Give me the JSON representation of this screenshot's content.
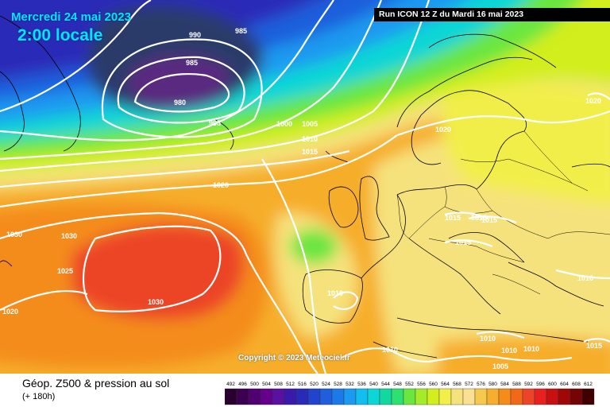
{
  "header": {
    "date": "Mercredi 24 mai 2023",
    "time": "2:00 locale",
    "run": "Run ICON 12 Z du Mardi 16 mai 2023"
  },
  "copyright": "Copyright © 2023 Meteociel.fr",
  "footer": {
    "product": "Géop. Z500 & pression au sol",
    "lead": "(+ 180h)"
  },
  "isobars": [
    {
      "label": "990"
    },
    {
      "label": "985"
    },
    {
      "label": "985"
    },
    {
      "label": "980"
    },
    {
      "label": "995"
    },
    {
      "label": "1000"
    },
    {
      "label": "1005"
    },
    {
      "label": "1010"
    },
    {
      "label": "1015"
    },
    {
      "label": "1020"
    },
    {
      "label": "1020"
    },
    {
      "label": "1020"
    },
    {
      "label": "1030"
    },
    {
      "label": "1030"
    },
    {
      "label": "1025"
    },
    {
      "label": "1030"
    },
    {
      "label": "1020"
    },
    {
      "label": "1015"
    },
    {
      "label": "1015"
    },
    {
      "label": "1015"
    },
    {
      "label": "1015"
    },
    {
      "label": "1010"
    },
    {
      "label": "1010"
    },
    {
      "label": "1010"
    },
    {
      "label": "1010"
    },
    {
      "label": "1010"
    },
    {
      "label": "1005"
    },
    {
      "label": "1010"
    },
    {
      "label": "1015"
    }
  ],
  "scale": {
    "values": [
      "492",
      "496",
      "500",
      "504",
      "508",
      "512",
      "516",
      "520",
      "524",
      "528",
      "532",
      "536",
      "540",
      "544",
      "548",
      "552",
      "556",
      "560",
      "564",
      "568",
      "572",
      "576",
      "580",
      "584",
      "588",
      "592",
      "596",
      "600",
      "604",
      "608",
      "612"
    ],
    "colors": [
      "#2a0030",
      "#3c0050",
      "#500070",
      "#64008c",
      "#5a10a0",
      "#3a1aaa",
      "#2a2ab8",
      "#2244cc",
      "#1f5edc",
      "#1c7ae8",
      "#1a9af0",
      "#12bdf0",
      "#0cd6d6",
      "#10d8a0",
      "#2ee070",
      "#6ae640",
      "#a4ec28",
      "#d2ee1e",
      "#f2ee4a",
      "#f6e27c",
      "#fae090",
      "#f6c84c",
      "#f6ae2c",
      "#f48c1a",
      "#f06818",
      "#ec4428",
      "#e82020",
      "#c81010",
      "#a00808",
      "#760404",
      "#400000"
    ]
  }
}
